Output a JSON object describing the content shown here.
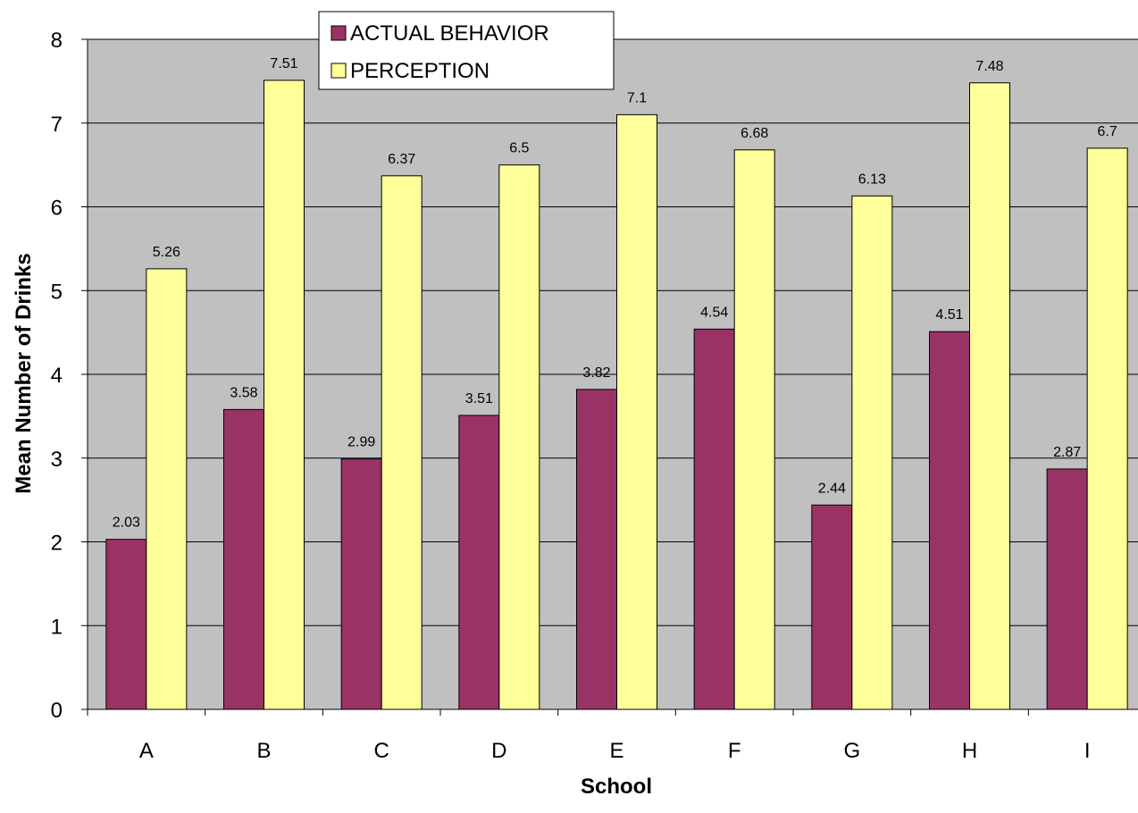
{
  "chart_data": {
    "type": "bar",
    "title": "",
    "xlabel": "School",
    "ylabel": "Mean Number of Drinks",
    "ylim": [
      0,
      8
    ],
    "yticks": [
      0,
      1,
      2,
      3,
      4,
      5,
      6,
      7,
      8
    ],
    "categories": [
      "A",
      "B",
      "C",
      "D",
      "E",
      "F",
      "G",
      "H",
      "I"
    ],
    "series": [
      {
        "name": "ACTUAL BEHAVIOR",
        "color": "#993366",
        "values": [
          2.03,
          3.58,
          2.99,
          3.51,
          3.82,
          4.54,
          2.44,
          4.51,
          2.87
        ],
        "labels": [
          "2.03",
          "3.58",
          "2.99",
          "3.51",
          "3.82",
          "4.54",
          "2.44",
          "4.51",
          "2.87"
        ]
      },
      {
        "name": "PERCEPTION",
        "color": "#FFFF99",
        "values": [
          5.26,
          7.51,
          6.37,
          6.5,
          7.1,
          6.68,
          6.13,
          7.48,
          6.7
        ],
        "labels": [
          "5.26",
          "7.51",
          "6.37",
          "6.5",
          "7.1",
          "6.68",
          "6.13",
          "7.48",
          "6.7"
        ]
      }
    ],
    "grid": true,
    "plot_background": "#C0C0C0",
    "legend_position": "top"
  }
}
